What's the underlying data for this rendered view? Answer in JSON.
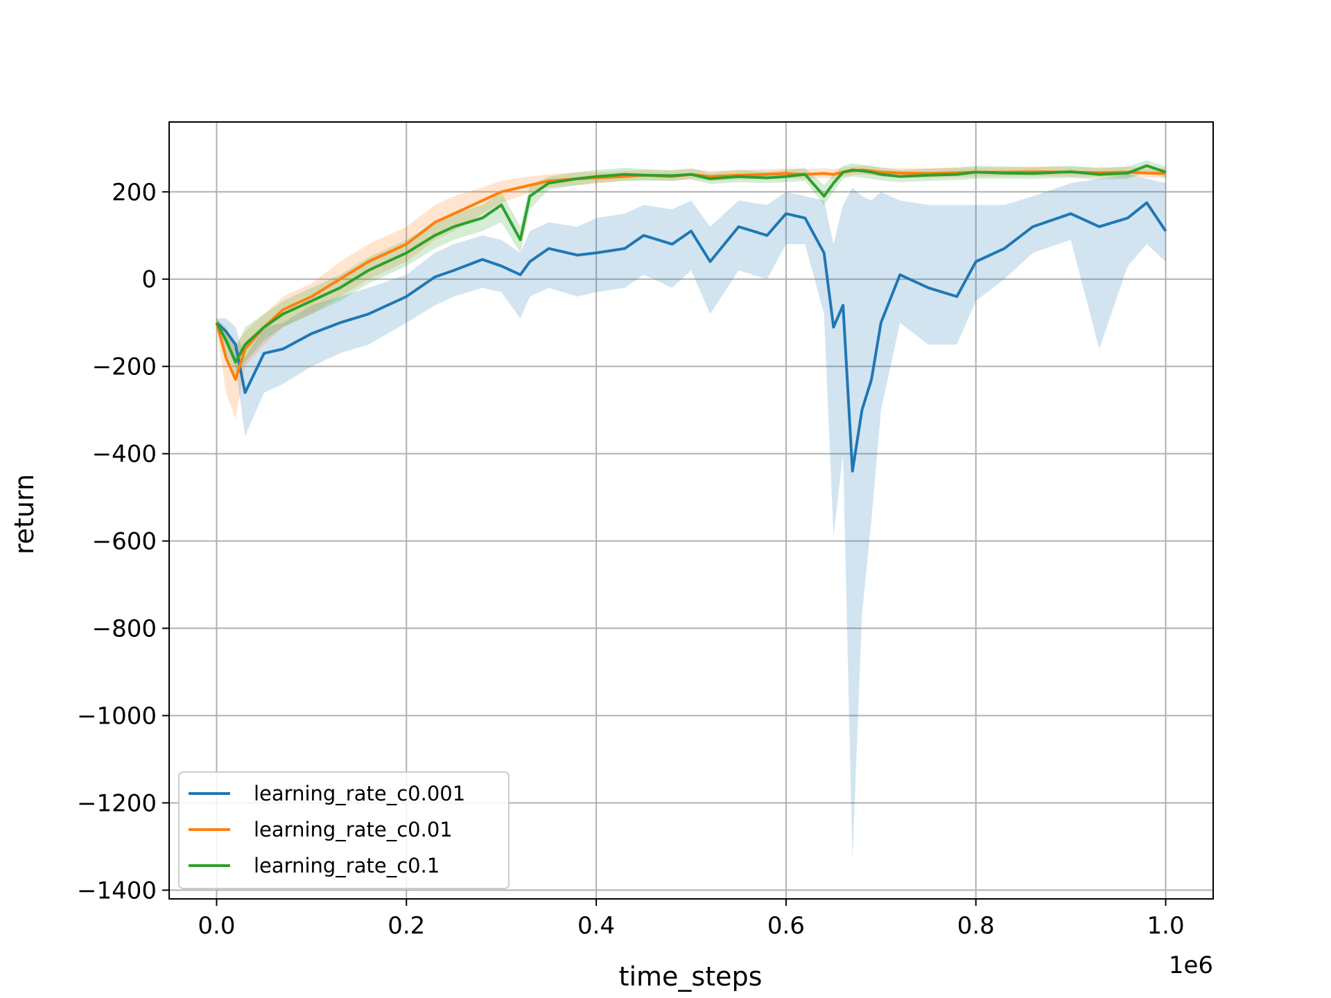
{
  "chart_data": {
    "type": "line",
    "xlabel": "time_steps",
    "ylabel": "return",
    "x_offset_label": "1e6",
    "xlim": [
      -0.05,
      1.05
    ],
    "ylim": [
      -1420,
      360
    ],
    "x_ticks": [
      0.0,
      0.2,
      0.4,
      0.6,
      0.8,
      1.0
    ],
    "x_tick_labels": [
      "0.0",
      "0.2",
      "0.4",
      "0.6",
      "0.8",
      "1.0"
    ],
    "y_ticks": [
      -1400,
      -1200,
      -1000,
      -800,
      -600,
      -400,
      -200,
      0,
      200
    ],
    "y_tick_labels": [
      "−1400",
      "−1200",
      "−1000",
      "−800",
      "−600",
      "−400",
      "−200",
      "0",
      "200"
    ],
    "grid": true,
    "legend_position": "lower-left",
    "x": [
      0.0,
      0.01,
      0.02,
      0.03,
      0.05,
      0.07,
      0.1,
      0.13,
      0.16,
      0.2,
      0.23,
      0.25,
      0.28,
      0.3,
      0.32,
      0.33,
      0.35,
      0.38,
      0.4,
      0.43,
      0.45,
      0.48,
      0.5,
      0.52,
      0.55,
      0.58,
      0.6,
      0.62,
      0.64,
      0.65,
      0.66,
      0.67,
      0.68,
      0.69,
      0.7,
      0.72,
      0.75,
      0.78,
      0.8,
      0.83,
      0.86,
      0.9,
      0.93,
      0.96,
      0.98,
      1.0
    ],
    "series": [
      {
        "name": "learning_rate_c0.001",
        "color": "#1f77b4",
        "values": [
          -100,
          -120,
          -150,
          -260,
          -170,
          -160,
          -125,
          -100,
          -80,
          -40,
          5,
          20,
          45,
          30,
          10,
          40,
          70,
          55,
          60,
          70,
          100,
          80,
          110,
          40,
          120,
          100,
          150,
          140,
          60,
          -110,
          -60,
          -440,
          -300,
          -230,
          -100,
          10,
          -20,
          -40,
          40,
          70,
          120,
          150,
          120,
          140,
          175,
          110
        ],
        "lower": [
          -110,
          -150,
          -200,
          -360,
          -260,
          -240,
          -200,
          -170,
          -150,
          -100,
          -60,
          -40,
          -20,
          -30,
          -90,
          -40,
          -20,
          -40,
          -30,
          -20,
          10,
          -20,
          20,
          -80,
          20,
          0,
          80,
          80,
          -80,
          -590,
          -400,
          -1330,
          -770,
          -550,
          -300,
          -100,
          -150,
          -150,
          -50,
          0,
          60,
          90,
          -160,
          30,
          80,
          40
        ],
        "upper": [
          -90,
          -90,
          -110,
          -180,
          -110,
          -100,
          -60,
          -40,
          -20,
          10,
          60,
          80,
          100,
          90,
          60,
          110,
          130,
          120,
          140,
          150,
          170,
          160,
          180,
          120,
          180,
          170,
          200,
          190,
          180,
          80,
          170,
          210,
          190,
          180,
          200,
          180,
          170,
          170,
          170,
          170,
          190,
          220,
          230,
          240,
          230,
          220
        ]
      },
      {
        "name": "learning_rate_c0.01",
        "color": "#ff7f0e",
        "values": [
          -100,
          -180,
          -230,
          -160,
          -110,
          -70,
          -40,
          0,
          40,
          80,
          130,
          150,
          180,
          200,
          210,
          215,
          225,
          230,
          232,
          235,
          238,
          235,
          240,
          235,
          238,
          240,
          242,
          240,
          242,
          240,
          245,
          248,
          250,
          248,
          245,
          243,
          242,
          244,
          245,
          245,
          246,
          245,
          244,
          245,
          243,
          242
        ],
        "lower": [
          -110,
          -260,
          -320,
          -200,
          -150,
          -110,
          -80,
          -40,
          0,
          40,
          90,
          110,
          150,
          175,
          190,
          200,
          210,
          215,
          220,
          225,
          228,
          225,
          230,
          225,
          228,
          230,
          232,
          230,
          232,
          230,
          235,
          238,
          240,
          238,
          235,
          233,
          232,
          234,
          235,
          235,
          236,
          235,
          234,
          235,
          233,
          232
        ],
        "upper": [
          -90,
          -120,
          -150,
          -120,
          -80,
          -40,
          -10,
          40,
          80,
          120,
          170,
          190,
          210,
          225,
          232,
          235,
          240,
          245,
          245,
          248,
          250,
          248,
          252,
          248,
          250,
          252,
          254,
          252,
          254,
          252,
          256,
          258,
          260,
          258,
          256,
          254,
          254,
          256,
          256,
          256,
          258,
          257,
          256,
          257,
          255,
          254
        ]
      },
      {
        "name": "learning_rate_c0.1",
        "color": "#2ca02c",
        "values": [
          -100,
          -140,
          -190,
          -150,
          -110,
          -80,
          -50,
          -20,
          20,
          60,
          100,
          120,
          140,
          170,
          90,
          190,
          220,
          230,
          235,
          240,
          238,
          237,
          240,
          230,
          235,
          232,
          235,
          240,
          190,
          220,
          245,
          250,
          248,
          245,
          240,
          235,
          238,
          240,
          245,
          243,
          242,
          246,
          240,
          243,
          260,
          245
        ],
        "lower": [
          -110,
          -170,
          -220,
          -190,
          -140,
          -110,
          -80,
          -50,
          -10,
          30,
          70,
          90,
          110,
          130,
          60,
          160,
          205,
          215,
          220,
          225,
          225,
          225,
          228,
          218,
          222,
          220,
          222,
          225,
          170,
          200,
          230,
          235,
          232,
          230,
          226,
          222,
          225,
          227,
          230,
          230,
          230,
          232,
          228,
          230,
          245,
          232
        ],
        "upper": [
          -90,
          -110,
          -160,
          -110,
          -80,
          -50,
          -20,
          10,
          50,
          90,
          130,
          150,
          170,
          200,
          120,
          215,
          235,
          245,
          250,
          255,
          252,
          250,
          254,
          244,
          250,
          246,
          250,
          255,
          215,
          240,
          260,
          265,
          262,
          260,
          255,
          250,
          253,
          255,
          260,
          258,
          256,
          260,
          254,
          258,
          272,
          258
        ]
      }
    ]
  }
}
